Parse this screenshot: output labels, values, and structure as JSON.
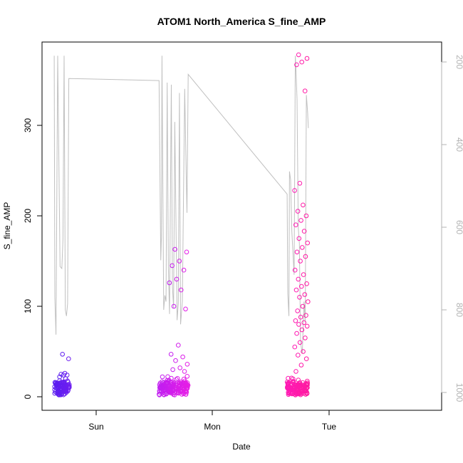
{
  "chart_data": {
    "type": "scatter",
    "title": "ATOM1 North_America S_fine_AMP",
    "xlabel": "Date",
    "ylabel": "S_fine_AMP",
    "x_ticks": [
      "Sun",
      "Mon",
      "Tue"
    ],
    "y_ticks": [
      "0",
      "100",
      "200",
      "300"
    ],
    "ylim": [
      -14,
      390
    ],
    "right_axis": {
      "ticks": [
        "200",
        "400",
        "600",
        "800",
        "1000"
      ],
      "range_reversed": [
        185,
        1035
      ],
      "color": "#b3b3b3"
    },
    "grid": false,
    "legend": "none",
    "colors": {
      "early": "#5a1ef0",
      "mid": "#e61ee6",
      "late": "#ff1aa0",
      "line": "#c0c0c0"
    },
    "clusters": [
      {
        "x_start": -0.36,
        "x_end": -0.23,
        "color_from": "#5a1ef0",
        "color_to": "#6e1ef0",
        "spikes": [
          47,
          42,
          26,
          25,
          24,
          24,
          22,
          20
        ]
      },
      {
        "x_start": 0.54,
        "x_end": 0.79,
        "color_from": "#c01ef0",
        "color_to": "#e61ee6",
        "spikes": [
          163,
          160,
          150,
          145,
          140,
          130,
          126,
          118,
          100,
          97,
          57,
          47,
          44,
          40,
          36,
          32,
          30,
          28
        ]
      },
      {
        "x_start": 1.64,
        "x_end": 1.82,
        "color_from": "#ff1ab4",
        "color_to": "#ff1aa0",
        "spikes": [
          378,
          374,
          370,
          367,
          338,
          236,
          228,
          212,
          205,
          200,
          195,
          190,
          183,
          175,
          170,
          165,
          160,
          155,
          150,
          140,
          135,
          130,
          125,
          122,
          118,
          113,
          110,
          105,
          100,
          95,
          90,
          88,
          84,
          82,
          80,
          78,
          74,
          70,
          65,
          60,
          55,
          50,
          46,
          42,
          35,
          28
        ]
      }
    ],
    "right_series": {
      "points": [
        [
          -0.36,
          185
        ],
        [
          -0.355,
          770
        ],
        [
          -0.345,
          860
        ],
        [
          -0.33,
          185
        ],
        [
          -0.31,
          695
        ],
        [
          -0.295,
          700
        ],
        [
          -0.285,
          630
        ],
        [
          -0.275,
          185
        ],
        [
          -0.265,
          800
        ],
        [
          -0.255,
          815
        ],
        [
          -0.245,
          785
        ],
        [
          -0.235,
          240
        ],
        [
          0.54,
          245
        ],
        [
          0.555,
          680
        ],
        [
          0.56,
          625
        ],
        [
          0.565,
          185
        ],
        [
          0.58,
          800
        ],
        [
          0.59,
          765
        ],
        [
          0.6,
          780
        ],
        [
          0.61,
          250
        ],
        [
          0.62,
          700
        ],
        [
          0.63,
          810
        ],
        [
          0.645,
          255
        ],
        [
          0.655,
          745
        ],
        [
          0.665,
          795
        ],
        [
          0.675,
          345
        ],
        [
          0.695,
          825
        ],
        [
          0.705,
          785
        ],
        [
          0.715,
          275
        ],
        [
          0.725,
          835
        ],
        [
          0.74,
          780
        ],
        [
          0.76,
          265
        ],
        [
          0.775,
          500
        ],
        [
          0.78,
          565
        ],
        [
          0.79,
          230
        ],
        [
          1.64,
          520
        ],
        [
          1.645,
          760
        ],
        [
          1.655,
          815
        ],
        [
          1.66,
          465
        ],
        [
          1.67,
          485
        ],
        [
          1.68,
          610
        ],
        [
          1.7,
          715
        ],
        [
          1.71,
          185
        ],
        [
          1.715,
          215
        ],
        [
          1.725,
          290
        ],
        [
          1.735,
          600
        ],
        [
          1.745,
          640
        ],
        [
          1.755,
          880
        ],
        [
          1.77,
          905
        ],
        [
          1.785,
          780
        ],
        [
          1.795,
          830
        ],
        [
          1.805,
          280
        ],
        [
          1.815,
          320
        ],
        [
          1.822,
          360
        ]
      ]
    }
  }
}
